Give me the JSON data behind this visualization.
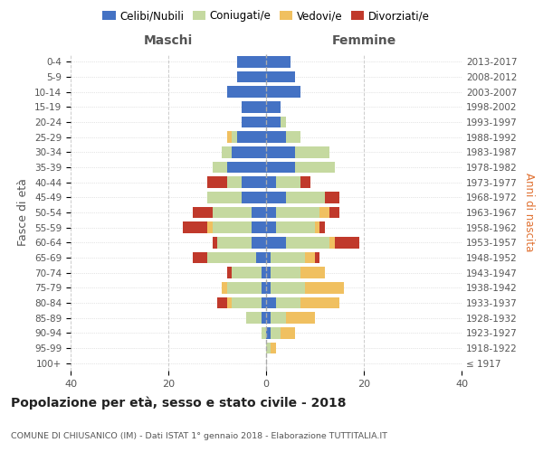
{
  "age_groups": [
    "100+",
    "95-99",
    "90-94",
    "85-89",
    "80-84",
    "75-79",
    "70-74",
    "65-69",
    "60-64",
    "55-59",
    "50-54",
    "45-49",
    "40-44",
    "35-39",
    "30-34",
    "25-29",
    "20-24",
    "15-19",
    "10-14",
    "5-9",
    "0-4"
  ],
  "birth_years": [
    "≤ 1917",
    "1918-1922",
    "1923-1927",
    "1928-1932",
    "1933-1937",
    "1938-1942",
    "1943-1947",
    "1948-1952",
    "1953-1957",
    "1958-1962",
    "1963-1967",
    "1968-1972",
    "1973-1977",
    "1978-1982",
    "1983-1987",
    "1988-1992",
    "1993-1997",
    "1998-2002",
    "2003-2007",
    "2008-2012",
    "2013-2017"
  ],
  "maschi": {
    "celibi": [
      0,
      0,
      0,
      1,
      1,
      1,
      1,
      2,
      3,
      3,
      3,
      5,
      5,
      8,
      7,
      6,
      5,
      5,
      8,
      6,
      6
    ],
    "coniugati": [
      0,
      0,
      1,
      3,
      6,
      7,
      6,
      10,
      7,
      8,
      8,
      7,
      3,
      3,
      2,
      1,
      0,
      0,
      0,
      0,
      0
    ],
    "vedovi": [
      0,
      0,
      0,
      0,
      1,
      1,
      0,
      0,
      0,
      1,
      0,
      0,
      0,
      0,
      0,
      1,
      0,
      0,
      0,
      0,
      0
    ],
    "divorziati": [
      0,
      0,
      0,
      0,
      2,
      0,
      1,
      3,
      1,
      5,
      4,
      0,
      4,
      0,
      0,
      0,
      0,
      0,
      0,
      0,
      0
    ]
  },
  "femmine": {
    "nubili": [
      0,
      0,
      1,
      1,
      2,
      1,
      1,
      1,
      4,
      2,
      2,
      4,
      2,
      6,
      6,
      4,
      3,
      3,
      7,
      6,
      5
    ],
    "coniugate": [
      0,
      1,
      2,
      3,
      5,
      7,
      6,
      7,
      9,
      8,
      9,
      8,
      5,
      8,
      7,
      3,
      1,
      0,
      0,
      0,
      0
    ],
    "vedove": [
      0,
      1,
      3,
      6,
      8,
      8,
      5,
      2,
      1,
      1,
      2,
      0,
      0,
      0,
      0,
      0,
      0,
      0,
      0,
      0,
      0
    ],
    "divorziate": [
      0,
      0,
      0,
      0,
      0,
      0,
      0,
      1,
      5,
      1,
      2,
      3,
      2,
      0,
      0,
      0,
      0,
      0,
      0,
      0,
      0
    ]
  },
  "colors": {
    "celibi_nubili": "#4472c4",
    "coniugati_e": "#c5d9a0",
    "vedovi_e": "#f0c060",
    "divorziati_e": "#c0392b"
  },
  "xlim": 40,
  "title": "Popolazione per età, sesso e stato civile - 2018",
  "subtitle": "COMUNE DI CHIUSANICO (IM) - Dati ISTAT 1° gennaio 2018 - Elaborazione TUTTITALIA.IT",
  "ylabel_left": "Fasce di età",
  "ylabel_right": "Anni di nascita",
  "xlabel_maschi": "Maschi",
  "xlabel_femmine": "Femmine",
  "legend_labels": [
    "Celibi/Nubili",
    "Coniugati/e",
    "Vedovi/e",
    "Divorziati/e"
  ],
  "background_color": "#ffffff"
}
